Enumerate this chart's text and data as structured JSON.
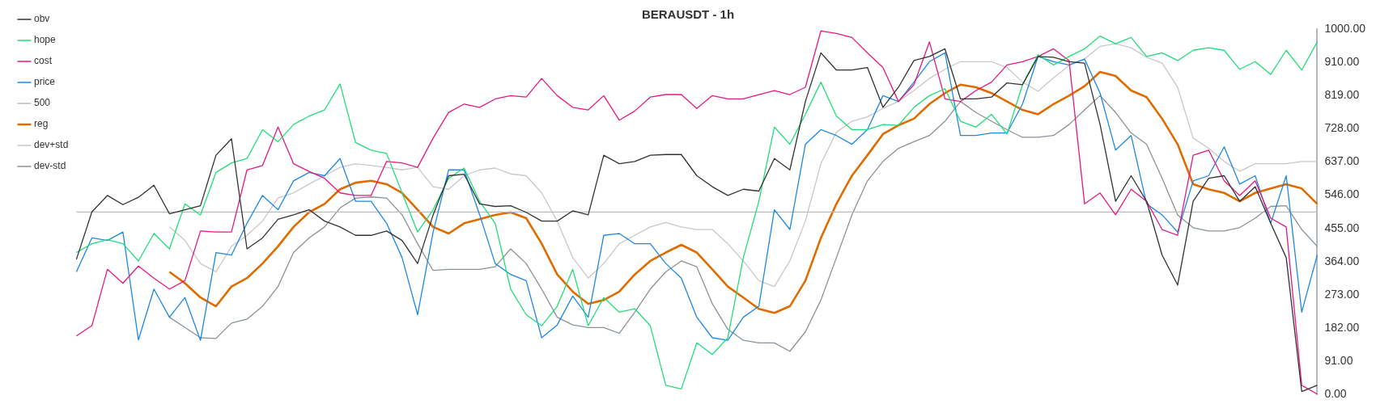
{
  "chart_data": {
    "type": "line",
    "title": "BERAUSDT - 1h",
    "categories": [
      null,
      null,
      null,
      null,
      null,
      null,
      null,
      null,
      null,
      null,
      null,
      null,
      null,
      null,
      null,
      null,
      null,
      null,
      null,
      null,
      null,
      null,
      null,
      null,
      null,
      null,
      null,
      null,
      null,
      null,
      null,
      null,
      null,
      null,
      null,
      null,
      null,
      null,
      null,
      null,
      null,
      null,
      null,
      null,
      null,
      null,
      null,
      null,
      null,
      null,
      null,
      null,
      null,
      null,
      null,
      null,
      null,
      null,
      null,
      null,
      null,
      null,
      null,
      null,
      null,
      null,
      null,
      null,
      null,
      null,
      null,
      null,
      null,
      null,
      null,
      null,
      null,
      null,
      null,
      null,
      null
    ],
    "series": [
      {
        "name": "obv",
        "color": "#333333",
        "values": [
          370,
          500,
          545,
          520,
          540,
          573,
          495,
          506,
          517,
          655,
          700,
          399,
          429,
          480,
          492,
          506,
          475,
          459,
          436,
          436,
          448,
          422,
          359,
          492,
          599,
          603,
          522,
          515,
          517,
          499,
          475,
          475,
          503,
          492,
          655,
          632,
          638,
          655,
          657,
          657,
          599,
          569,
          545,
          562,
          557,
          646,
          615,
          802,
          935,
          888,
          888,
          895,
          786,
          841,
          914,
          925,
          946,
          809,
          809,
          814,
          853,
          848,
          925,
          923,
          911,
          907,
          739,
          529,
          599,
          529,
          382,
          300,
          529,
          592,
          599,
          529,
          569,
          469,
          375,
          9,
          26
        ]
      },
      {
        "name": "hope",
        "color": "#22dd77",
        "values": [
          389,
          413,
          424,
          413,
          366,
          441,
          399,
          522,
          492,
          608,
          634,
          646,
          725,
          692,
          739,
          762,
          779,
          850,
          690,
          669,
          660,
          552,
          445,
          506,
          592,
          620,
          529,
          469,
          289,
          219,
          189,
          242,
          343,
          189,
          266,
          226,
          235,
          189,
          26,
          16,
          142,
          110,
          156,
          375,
          529,
          732,
          685,
          767,
          855,
          762,
          725,
          725,
          739,
          737,
          786,
          818,
          837,
          748,
          732,
          767,
          713,
          848,
          930,
          902,
          925,
          946,
          981,
          960,
          977,
          925,
          935,
          914,
          942,
          949,
          942,
          890,
          911,
          876,
          942,
          888,
          965
        ]
      },
      {
        "name": "cost",
        "color": "#e6197f",
        "values": [
          161,
          189,
          343,
          305,
          352,
          319,
          289,
          312,
          448,
          445,
          445,
          615,
          627,
          732,
          632,
          611,
          592,
          552,
          545,
          545,
          638,
          634,
          622,
          702,
          772,
          795,
          786,
          809,
          818,
          814,
          865,
          818,
          786,
          779,
          818,
          751,
          776,
          814,
          821,
          821,
          783,
          818,
          809,
          809,
          821,
          832,
          821,
          841,
          995,
          988,
          977,
          935,
          895,
          802,
          848,
          965,
          809,
          802,
          832,
          855,
          902,
          911,
          925,
          946,
          914,
          522,
          552,
          492,
          562,
          529,
          452,
          436,
          655,
          669,
          585,
          545,
          585,
          483,
          459,
          26,
          2
        ]
      },
      {
        "name": "price",
        "color": "#1e88e5",
        "values": [
          336,
          429,
          422,
          445,
          150,
          289,
          212,
          266,
          149,
          389,
          382,
          469,
          545,
          506,
          585,
          608,
          599,
          646,
          529,
          529,
          469,
          375,
          219,
          445,
          615,
          615,
          492,
          359,
          329,
          312,
          156,
          191,
          270,
          212,
          436,
          441,
          413,
          413,
          359,
          319,
          212,
          156,
          149,
          212,
          242,
          506,
          452,
          685,
          725,
          709,
          685,
          725,
          818,
          802,
          855,
          911,
          935,
          709,
          709,
          716,
          716,
          795,
          925,
          911,
          902,
          918,
          825,
          669,
          709,
          522,
          492,
          445,
          585,
          599,
          678,
          576,
          599,
          469,
          599,
          226,
          382
        ]
      },
      {
        "name": "500",
        "color": "#bbbbbb",
        "values": [
          500,
          500,
          500,
          500,
          500,
          500,
          500,
          500,
          500,
          500,
          500,
          500,
          500,
          500,
          500,
          500,
          500,
          500,
          500,
          500,
          500,
          500,
          500,
          500,
          500,
          500,
          500,
          500,
          500,
          500,
          500,
          500,
          500,
          500,
          500,
          500,
          500,
          500,
          500,
          500,
          500,
          500,
          500,
          500,
          500,
          500,
          500,
          500,
          500,
          500,
          500,
          500,
          500,
          500,
          500,
          500,
          500,
          500,
          500,
          500,
          500,
          500,
          500,
          500,
          500,
          500,
          500,
          500,
          500,
          500,
          500,
          500,
          500,
          500,
          500,
          500,
          500,
          500,
          500,
          500,
          500
        ]
      },
      {
        "name": "reg",
        "color": "#e06c00",
        "values": [
          null,
          null,
          null,
          null,
          null,
          null,
          336,
          305,
          266,
          242,
          296,
          319,
          359,
          406,
          459,
          499,
          522,
          562,
          580,
          585,
          576,
          552,
          506,
          459,
          441,
          469,
          480,
          492,
          499,
          483,
          413,
          329,
          282,
          249,
          259,
          282,
          329,
          366,
          389,
          410,
          389,
          343,
          296,
          266,
          235,
          224,
          242,
          312,
          429,
          522,
          599,
          655,
          713,
          737,
          755,
          795,
          825,
          848,
          841,
          825,
          802,
          779,
          767,
          795,
          818,
          844,
          883,
          872,
          832,
          814,
          755,
          685,
          576,
          562,
          552,
          529,
          552,
          564,
          576,
          564,
          522
        ]
      },
      {
        "name": "dev+std",
        "color": "#c8c8c8",
        "values": [
          null,
          null,
          null,
          null,
          null,
          null,
          459,
          422,
          359,
          336,
          406,
          436,
          475,
          538,
          552,
          576,
          599,
          622,
          632,
          627,
          622,
          615,
          622,
          569,
          562,
          599,
          615,
          620,
          604,
          599,
          552,
          475,
          375,
          319,
          359,
          413,
          436,
          459,
          471,
          459,
          452,
          452,
          413,
          366,
          312,
          296,
          366,
          475,
          632,
          718,
          748,
          760,
          783,
          802,
          832,
          865,
          890,
          911,
          911,
          911,
          895,
          855,
          830,
          867,
          900,
          918,
          953,
          960,
          949,
          923,
          907,
          841,
          702,
          674,
          638,
          611,
          632,
          632,
          632,
          638,
          638
        ]
      },
      {
        "name": "dev-std",
        "color": "#8a9399",
        "values": [
          null,
          null,
          null,
          null,
          null,
          null,
          212,
          184,
          156,
          154,
          196,
          207,
          242,
          296,
          389,
          429,
          459,
          511,
          538,
          541,
          538,
          492,
          413,
          340,
          343,
          343,
          343,
          350,
          399,
          359,
          289,
          212,
          191,
          184,
          184,
          168,
          226,
          289,
          336,
          366,
          350,
          249,
          179,
          149,
          142,
          142,
          119,
          172,
          259,
          375,
          492,
          585,
          638,
          674,
          692,
          709,
          748,
          802,
          772,
          748,
          725,
          704,
          704,
          709,
          739,
          779,
          818,
          772,
          716,
          685,
          592,
          492,
          457,
          448,
          448,
          457,
          483,
          515,
          517,
          452,
          406
        ]
      }
    ],
    "ylim": [
      0,
      1000
    ],
    "yticks": [
      {
        "value": 0,
        "label": "0.00"
      },
      {
        "value": 91,
        "label": "91.00"
      },
      {
        "value": 182,
        "label": "182.00"
      },
      {
        "value": 273,
        "label": "273.00"
      },
      {
        "value": 364,
        "label": "364.00"
      },
      {
        "value": 455,
        "label": "455.00"
      },
      {
        "value": 546,
        "label": "546.00"
      },
      {
        "value": 637,
        "label": "637.00"
      },
      {
        "value": 728,
        "label": "728.00"
      },
      {
        "value": 819,
        "label": "819.00"
      },
      {
        "value": 910,
        "label": "910.00"
      },
      {
        "value": 1000,
        "label": "1000.00"
      }
    ],
    "tick_labels": "y",
    "grid": false,
    "legend": "top left",
    "marker": "none",
    "line_style": "solid"
  }
}
